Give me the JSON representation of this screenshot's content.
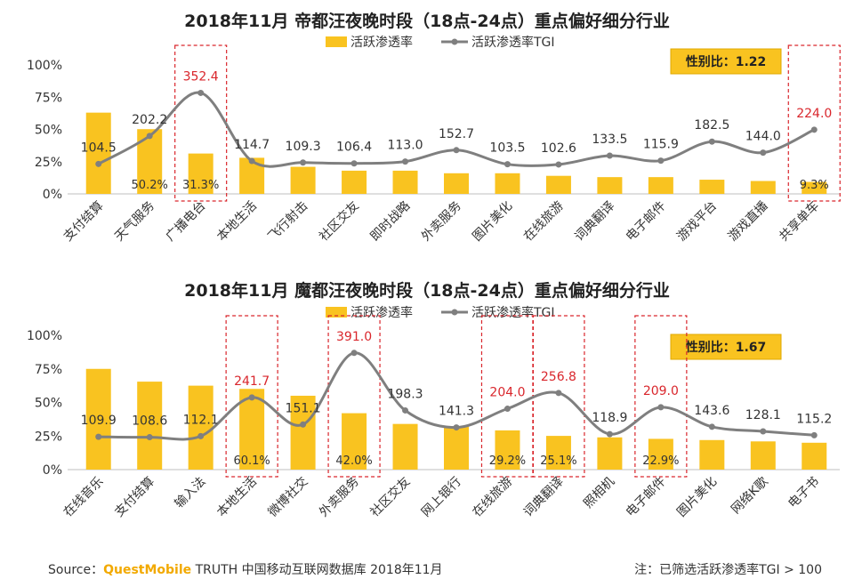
{
  "colors": {
    "bar": "#f9c320",
    "line": "#7f7f7f",
    "highlight": "#d9262c",
    "badge": "#f9c320",
    "axis": "#bfbfbf"
  },
  "chart_data": [
    {
      "type": "bar",
      "title": "2018年11月 帝都汪夜晚时段（18点-24点）重点偏好细分行业",
      "legend": {
        "bar": "活跃渗透率",
        "line": "活跃渗透率TGI",
        "position": "top"
      },
      "badge": "性别比：1.22",
      "categories": [
        "支付结算",
        "天气服务",
        "广播电台",
        "本地生活",
        "飞行射击",
        "社区交友",
        "即时战略",
        "外卖服务",
        "图片美化",
        "在线旅游",
        "词典翻译",
        "电子邮件",
        "游戏平台",
        "游戏直播",
        "共享单车"
      ],
      "series": [
        {
          "name": "活跃渗透率",
          "values": [
            0.63,
            0.502,
            0.313,
            0.28,
            0.21,
            0.18,
            0.18,
            0.16,
            0.16,
            0.14,
            0.13,
            0.13,
            0.11,
            0.1,
            0.093
          ]
        },
        {
          "name": "活跃渗透率TGI",
          "values": [
            104.5,
            202.2,
            352.4,
            114.7,
            109.3,
            106.4,
            113.0,
            152.7,
            103.5,
            102.6,
            133.5,
            115.9,
            182.5,
            144.0,
            224.0
          ]
        }
      ],
      "bar_labels": [
        null,
        "50.2%",
        "31.3%",
        null,
        null,
        null,
        null,
        null,
        null,
        null,
        null,
        null,
        null,
        null,
        "9.3%"
      ],
      "highlighted_categories": [
        2,
        14
      ],
      "ylim": [
        0,
        1
      ],
      "yticks": [
        "0%",
        "25%",
        "50%",
        "75%",
        "100%"
      ]
    },
    {
      "type": "bar",
      "title": "2018年11月 魔都汪夜晚时段（18点-24点）重点偏好细分行业",
      "legend": {
        "bar": "活跃渗透率",
        "line": "活跃渗透率TGI",
        "position": "top"
      },
      "badge": "性别比：1.67",
      "categories": [
        "在线音乐",
        "支付结算",
        "输入法",
        "本地生活",
        "微博社交",
        "外卖服务",
        "社区交友",
        "网上银行",
        "在线旅游",
        "词典翻译",
        "照相机",
        "电子邮件",
        "图片美化",
        "网络K歌",
        "电子书"
      ],
      "series": [
        {
          "name": "活跃渗透率",
          "values": [
            0.75,
            0.655,
            0.625,
            0.601,
            0.55,
            0.42,
            0.34,
            0.32,
            0.292,
            0.251,
            0.24,
            0.229,
            0.22,
            0.21,
            0.2
          ]
        },
        {
          "name": "活跃渗透率TGI",
          "values": [
            109.9,
            108.6,
            112.1,
            241.7,
            151.1,
            391.0,
            198.3,
            141.3,
            204.0,
            256.8,
            118.9,
            209.0,
            143.6,
            128.1,
            115.2
          ]
        }
      ],
      "bar_labels": [
        null,
        null,
        null,
        "60.1%",
        null,
        "42.0%",
        null,
        null,
        "29.2%",
        "25.1%",
        null,
        "22.9%",
        null,
        null,
        null
      ],
      "highlighted_categories": [
        3,
        5,
        8,
        9,
        11
      ],
      "ylim": [
        0,
        1
      ],
      "yticks": [
        "0%",
        "25%",
        "50%",
        "75%",
        "100%"
      ]
    }
  ],
  "footer": {
    "source_prefix": "Source：",
    "source_brand": "QuestMobile",
    "source_rest": " TRUTH 中国移动互联网数据库 2018年11月",
    "note": "注：已筛选活跃渗透率TGI > 100"
  }
}
